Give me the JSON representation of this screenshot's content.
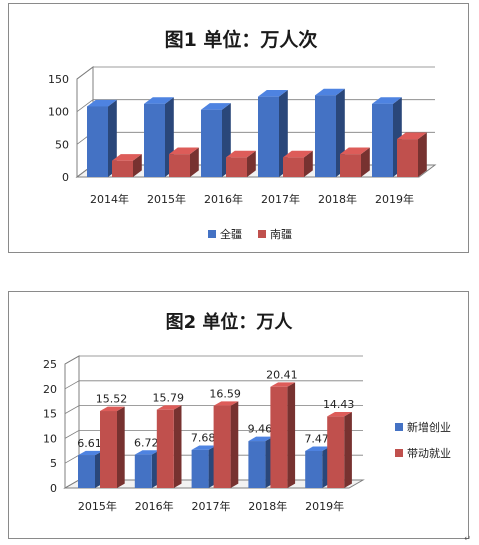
{
  "chart_data": [
    {
      "type": "bar",
      "title": "图1   单位：万人次",
      "categories": [
        "2014年",
        "2015年",
        "2016年",
        "2017年",
        "2018年",
        "2019年"
      ],
      "series": [
        {
          "name": "全疆",
          "values": [
            108,
            112,
            103,
            123,
            125,
            112
          ],
          "color": "#4472c4"
        },
        {
          "name": "南疆",
          "values": [
            25,
            35,
            30,
            30,
            35,
            58
          ],
          "color": "#c0504d"
        }
      ],
      "yticks": [
        0,
        50,
        100,
        150
      ],
      "ylim": [
        0,
        150
      ],
      "legend": "bottom",
      "style": "3d"
    },
    {
      "type": "bar",
      "title": "图2  单位：万人",
      "categories": [
        "2015年",
        "2016年",
        "2017年",
        "2018年",
        "2019年"
      ],
      "series": [
        {
          "name": "新增创业",
          "values": [
            6.61,
            6.72,
            7.68,
            9.46,
            7.47
          ],
          "color": "#4472c4"
        },
        {
          "name": "带动就业",
          "values": [
            15.52,
            15.79,
            16.59,
            20.41,
            14.43
          ],
          "color": "#c0504d"
        }
      ],
      "data_labels": [
        [
          "6.61",
          "6.72",
          "7.68",
          "9.46",
          "7.47"
        ],
        [
          "15.52",
          "15.79",
          "16.59",
          "20.41",
          "14.43"
        ]
      ],
      "yticks": [
        0,
        5,
        10,
        15,
        20,
        25
      ],
      "ylim": [
        0,
        25
      ],
      "legend": "right",
      "style": "3d"
    }
  ],
  "footer_mark": "↵"
}
